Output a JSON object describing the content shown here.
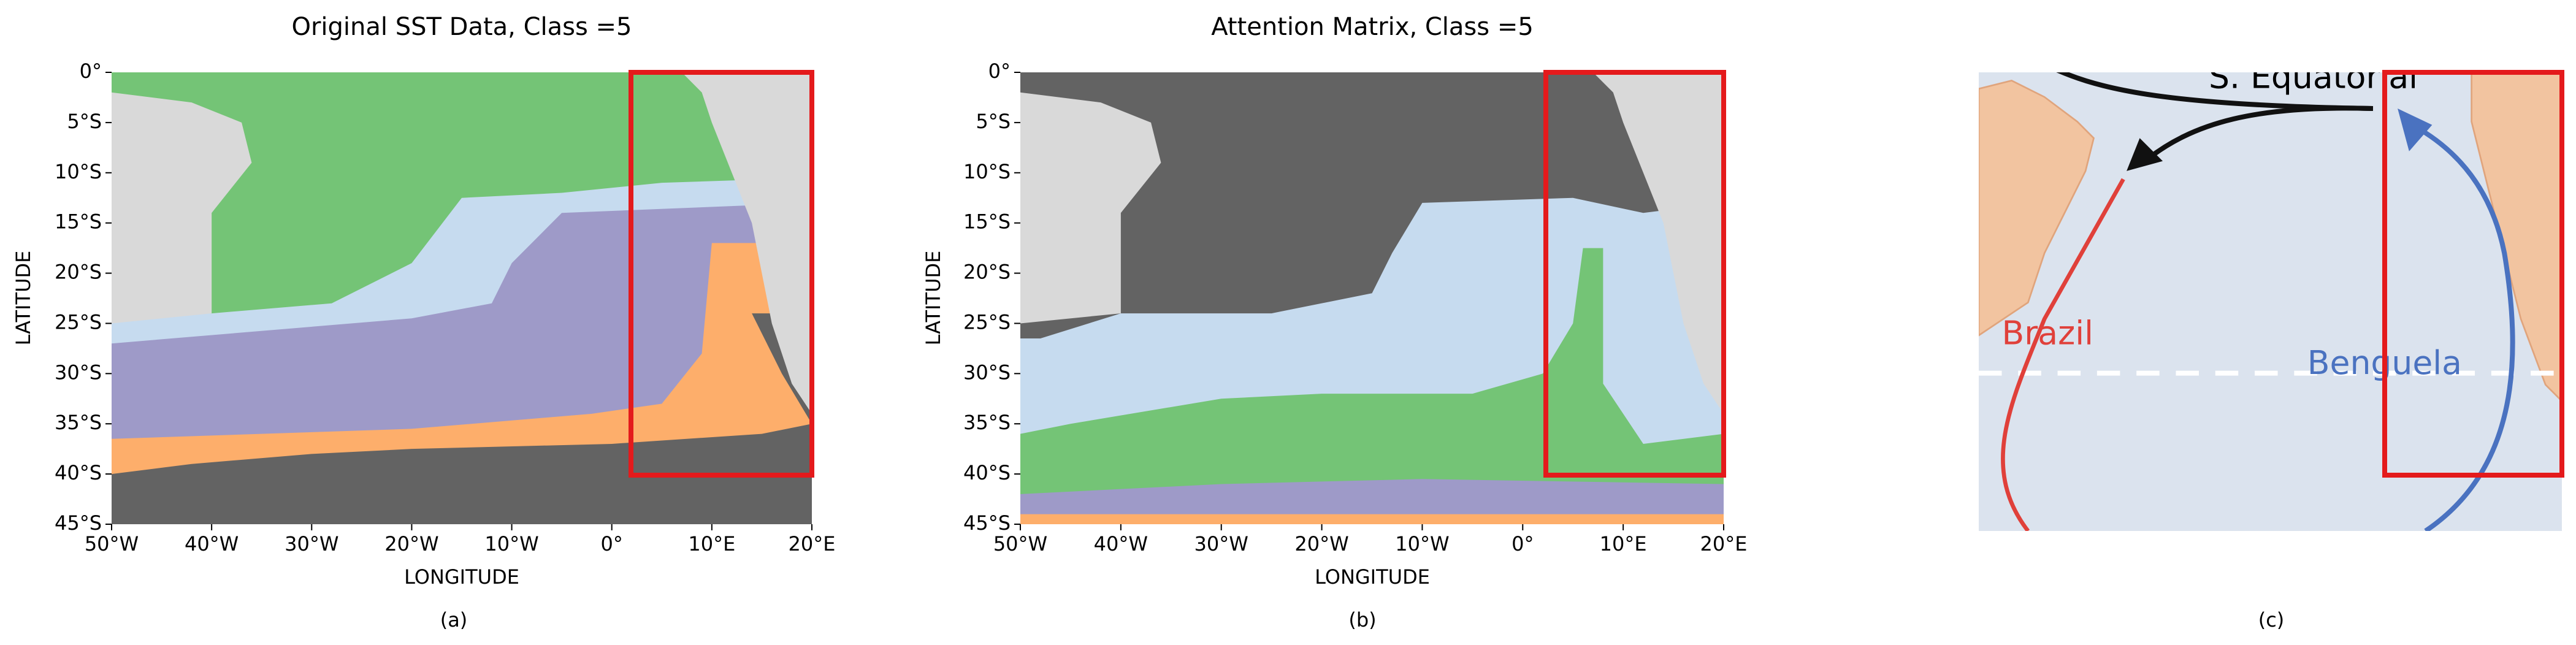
{
  "panels": [
    {
      "title": "Original SST Data, Class =5",
      "xlabel": "LONGITUDE",
      "ylabel": "LATITUDE",
      "xticks": [
        "50°W",
        "40°W",
        "30°W",
        "20°W",
        "10°W",
        "0°",
        "10°E",
        "20°E"
      ],
      "yticks": [
        "0°",
        "5°S",
        "10°S",
        "15°S",
        "20°S",
        "25°S",
        "30°S",
        "35°S",
        "40°S",
        "45°S"
      ],
      "caption": "(a)"
    },
    {
      "title": "Attention Matrix, Class =5",
      "xlabel": "LONGITUDE",
      "ylabel": "LATITUDE",
      "xticks": [
        "50°W",
        "40°W",
        "30°W",
        "20°W",
        "10°W",
        "0°",
        "10°E",
        "20°E"
      ],
      "yticks": [
        "0°",
        "5°S",
        "10°S",
        "15°S",
        "20°S",
        "25°S",
        "30°S",
        "35°S",
        "40°S",
        "45°S"
      ],
      "caption": "(b)"
    },
    {
      "labels": {
        "equatorial": "S. Equatorial",
        "brazil": "Brazil",
        "benguela": "Benguela"
      },
      "caption": "(c)"
    }
  ]
}
